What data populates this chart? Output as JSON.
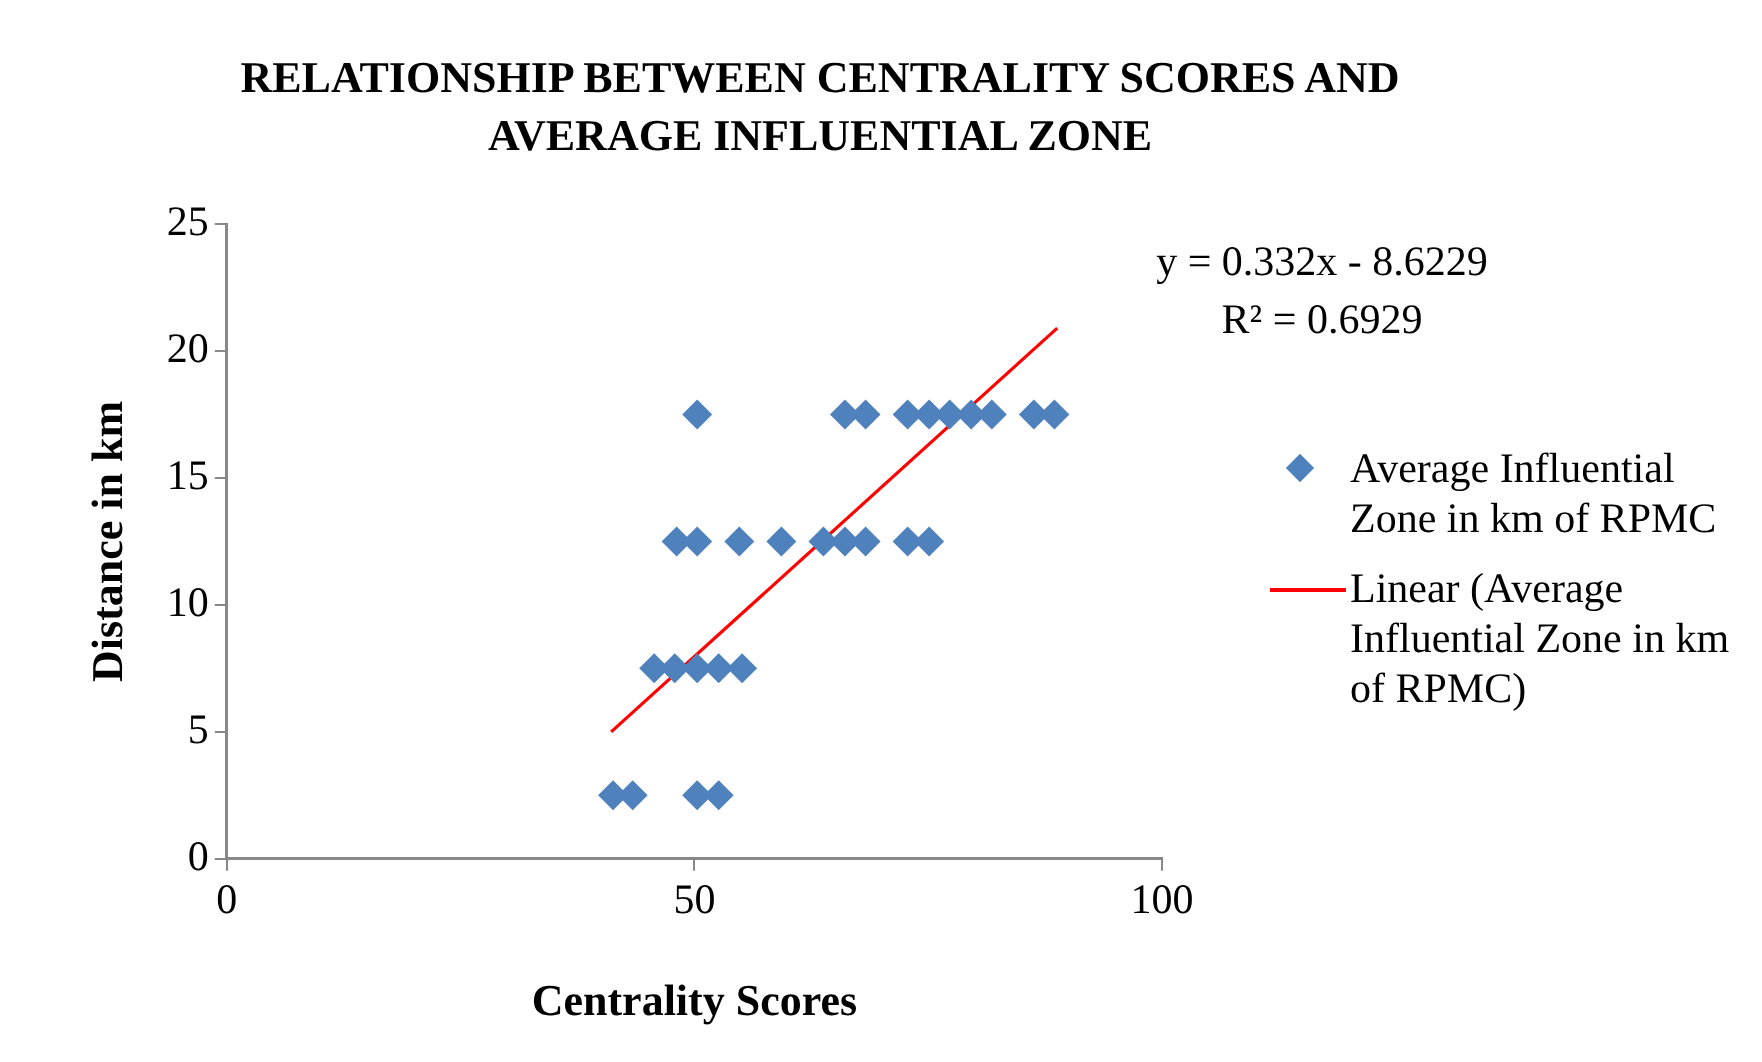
{
  "chart_data": {
    "type": "scatter",
    "title": "RELATIONSHIP BETWEEN CENTRALITY SCORES AND AVERAGE INFLUENTIAL ZONE",
    "xlabel": "Centrality Scores",
    "ylabel": "Distance in km",
    "xlim": [
      0,
      100
    ],
    "xticks": [
      0,
      50,
      100
    ],
    "ylim": [
      0,
      25
    ],
    "yticks": [
      0,
      5,
      10,
      15,
      20,
      25
    ],
    "grid": false,
    "legend": "right",
    "marker": "diamond",
    "annotations": [
      "y = 0.332x - 8.6229",
      "R² = 0.6929"
    ],
    "series": [
      {
        "name": "Average Influential Zone in km of RPMC",
        "color": "#4f81bd",
        "x": [
          41.3,
          43.4,
          50.3,
          52.6,
          45.7,
          47.9,
          50.3,
          52.6,
          55.1,
          48.1,
          50.3,
          54.8,
          59.3,
          63.8,
          66.1,
          68.3,
          72.8,
          75.1,
          50.3,
          66.1,
          68.3,
          72.8,
          75.1,
          77.3,
          79.6,
          81.8,
          86.3,
          88.5
        ],
        "values": [
          2.5,
          2.5,
          2.5,
          2.5,
          7.5,
          7.5,
          7.5,
          7.5,
          7.5,
          12.5,
          12.5,
          12.5,
          12.5,
          12.5,
          12.5,
          12.5,
          12.5,
          12.5,
          17.5,
          17.5,
          17.5,
          17.5,
          17.5,
          17.5,
          17.5,
          17.5,
          17.5,
          17.5
        ]
      },
      {
        "name": "Linear (Average Influential Zone in km of RPMC)",
        "type": "line",
        "color": "#ff0000",
        "marker": "none",
        "x": [
          41.1,
          88.8
        ],
        "values": [
          5.0,
          20.9
        ]
      }
    ]
  }
}
